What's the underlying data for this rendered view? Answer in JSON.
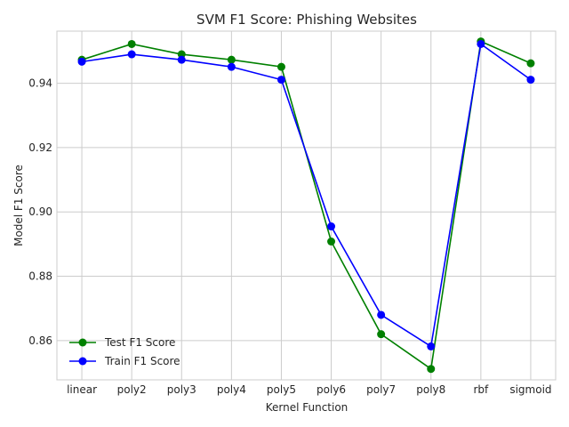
{
  "chart_data": {
    "type": "line",
    "title": "SVM F1 Score: Phishing Websites",
    "xlabel": "Kernel Function",
    "ylabel": "Model F1 Score",
    "categories": [
      "linear",
      "poly2",
      "poly3",
      "poly4",
      "poly5",
      "poly6",
      "poly7",
      "poly8",
      "rbf",
      "sigmoid"
    ],
    "ylim": [
      0.8478,
      0.9562
    ],
    "yticks": [
      0.86,
      0.88,
      0.9,
      0.92,
      0.94
    ],
    "ytick_labels": [
      "0.86",
      "0.88",
      "0.90",
      "0.92",
      "0.94"
    ],
    "grid": true,
    "legend_position": "lower-left",
    "series": [
      {
        "name": "Test F1 Score",
        "color": "#008000",
        "values": [
          0.9473,
          0.9522,
          0.949,
          0.9473,
          0.9451,
          0.8908,
          0.862,
          0.8512,
          0.953,
          0.9462
        ]
      },
      {
        "name": "Train F1 Score",
        "color": "#0000ff",
        "values": [
          0.9467,
          0.949,
          0.9473,
          0.9451,
          0.9411,
          0.8955,
          0.868,
          0.8582,
          0.9522,
          0.9411
        ]
      }
    ]
  }
}
